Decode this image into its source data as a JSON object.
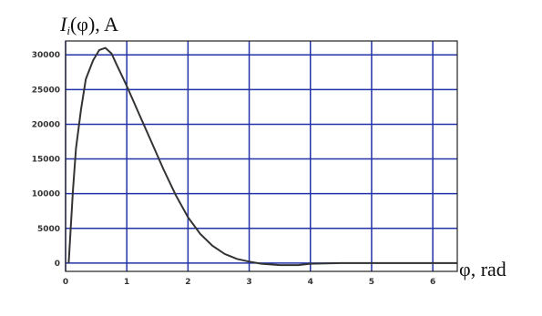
{
  "chart_data": {
    "type": "line",
    "ylabel_symbol": "I",
    "ylabel_subscript": "i",
    "ylabel_rest": "(φ), A",
    "xlabel": "φ, rad",
    "xlim": [
      0,
      6.4
    ],
    "ylim": [
      -1200,
      32000
    ],
    "x_ticks": [
      0,
      1,
      2,
      3,
      4,
      5,
      6
    ],
    "y_ticks": [
      0,
      5000,
      10000,
      15000,
      20000,
      25000,
      30000
    ],
    "grid": true,
    "grid_color": "#2233aa",
    "line_color": "#333333",
    "series": [
      {
        "points": [
          [
            0.05,
            0
          ],
          [
            0.08,
            4500
          ],
          [
            0.12,
            10500
          ],
          [
            0.17,
            16500
          ],
          [
            0.25,
            22000
          ],
          [
            0.33,
            26500
          ],
          [
            0.45,
            29200
          ],
          [
            0.55,
            30700
          ],
          [
            0.65,
            31000
          ],
          [
            0.75,
            30200
          ],
          [
            0.85,
            28300
          ],
          [
            1.0,
            25500
          ],
          [
            1.2,
            21500
          ],
          [
            1.4,
            17500
          ],
          [
            1.6,
            13500
          ],
          [
            1.8,
            9800
          ],
          [
            2.0,
            6600
          ],
          [
            2.2,
            4200
          ],
          [
            2.4,
            2500
          ],
          [
            2.6,
            1300
          ],
          [
            2.8,
            600
          ],
          [
            3.0,
            200
          ],
          [
            3.2,
            -100
          ],
          [
            3.5,
            -300
          ],
          [
            3.8,
            -300
          ],
          [
            4.0,
            -100
          ],
          [
            4.5,
            0
          ],
          [
            5.0,
            0
          ],
          [
            5.5,
            0
          ],
          [
            6.0,
            0
          ],
          [
            6.4,
            0
          ]
        ]
      }
    ]
  }
}
